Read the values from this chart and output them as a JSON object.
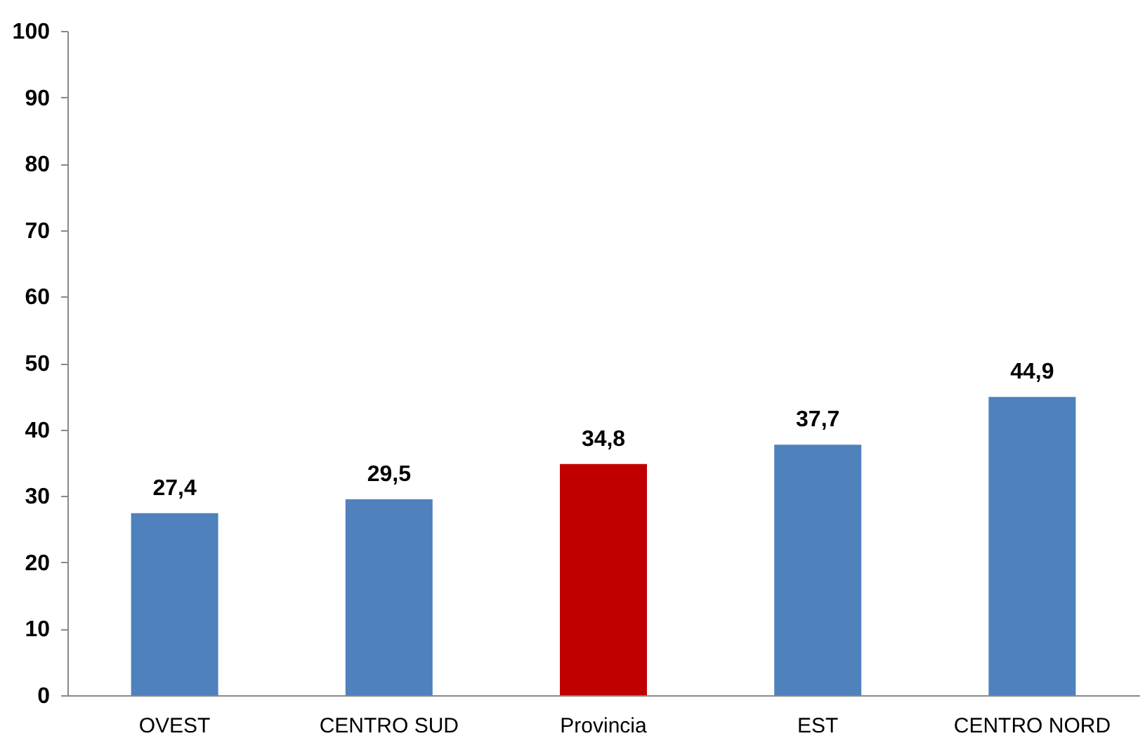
{
  "chart_data": {
    "type": "bar",
    "categories": [
      "OVEST",
      "CENTRO SUD",
      "Provincia",
      "EST",
      "CENTRO NORD"
    ],
    "values": [
      27.4,
      29.5,
      34.8,
      37.7,
      44.9
    ],
    "colors": [
      "#4f81bd",
      "#4f81bd",
      "#c00000",
      "#4f81bd",
      "#4f81bd"
    ],
    "value_labels": [
      "27,4",
      "29,5",
      "34,8",
      "37,7",
      "44,9"
    ],
    "ylim": [
      0,
      100
    ],
    "yticks": [
      0,
      10,
      20,
      30,
      40,
      50,
      60,
      70,
      80,
      90,
      100
    ],
    "grid": false
  }
}
